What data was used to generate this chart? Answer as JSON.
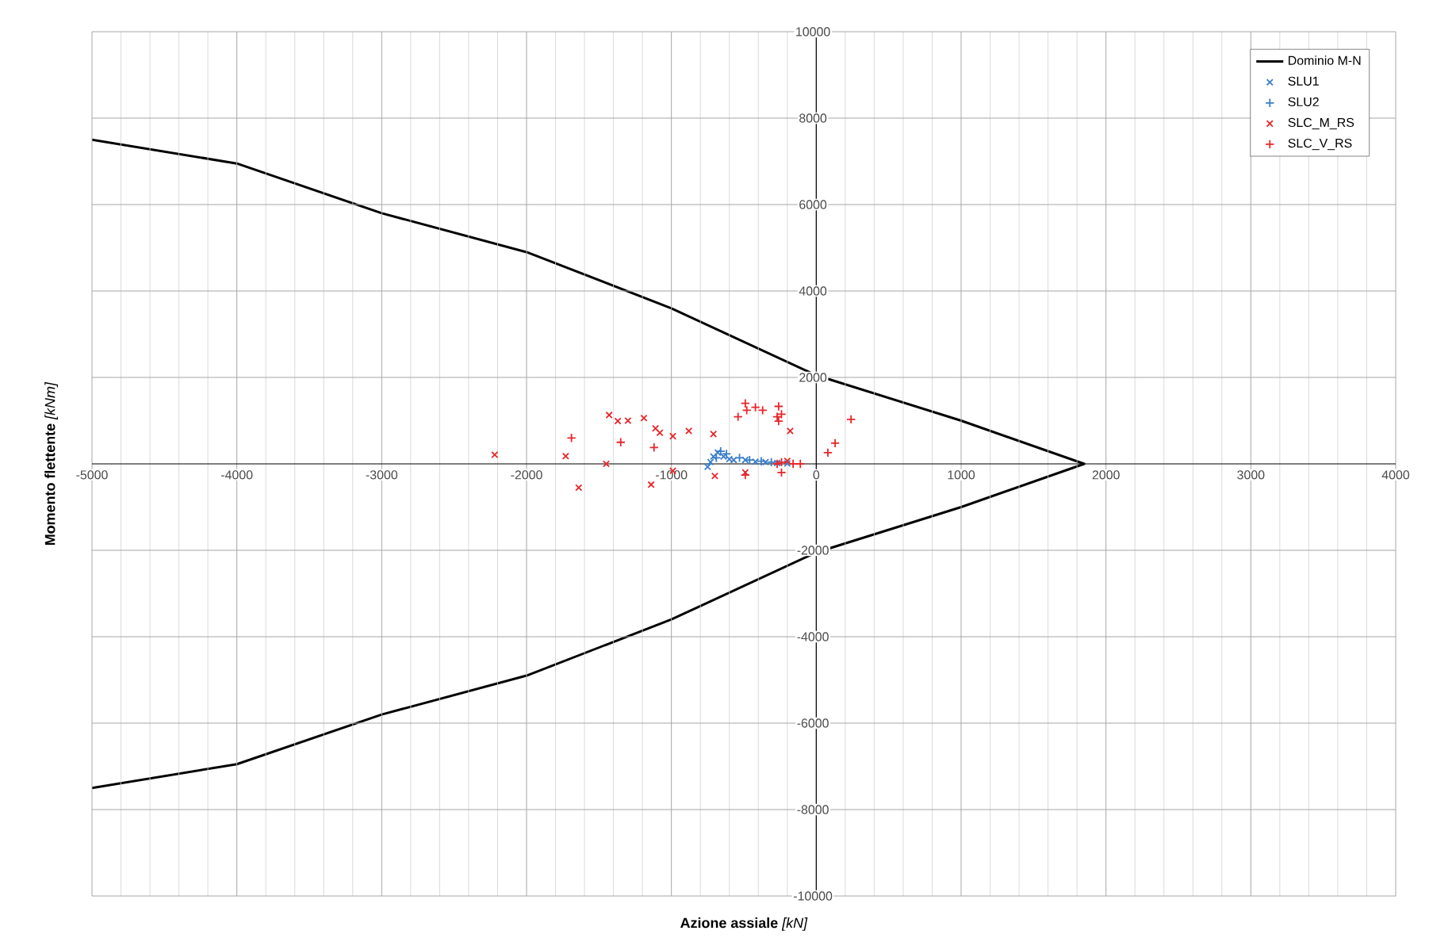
{
  "chart_data": {
    "type": "scatter",
    "xlabel": "**Azione assiale** *[kN]*",
    "ylabel": "**Momento flettente** *[kNm]*",
    "xlim": [
      -5000,
      4000
    ],
    "ylim": [
      -10000,
      10000
    ],
    "xticks": [
      -5000,
      -4000,
      -3000,
      -2000,
      -1000,
      0,
      1000,
      2000,
      3000,
      4000
    ],
    "yticks": [
      -10000,
      -8000,
      -6000,
      -4000,
      -2000,
      2000,
      4000,
      6000,
      8000,
      10000
    ],
    "grid": true,
    "legend": "top right",
    "series": [
      {
        "name": "Dominio M-N",
        "type": "line",
        "color": "#000000",
        "marker": "none",
        "x": [
          -5000,
          -4000,
          -3000,
          -2000,
          -1000,
          0,
          1000,
          1850,
          1000,
          0,
          -1000,
          -2000,
          -3000,
          -4000,
          -5000
        ],
        "values": [
          7500,
          6950,
          5800,
          4900,
          3600,
          2050,
          1000,
          0,
          -1000,
          -2050,
          -3600,
          -4900,
          -5800,
          -6950,
          -7500
        ]
      },
      {
        "name": "SLU1",
        "color": "#3a7dc9",
        "marker": "cross",
        "x": [
          -750,
          -710,
          -680,
          -640,
          -600,
          -570,
          -490,
          -420,
          -350,
          -270,
          -200,
          -730
        ],
        "values": [
          -70,
          170,
          260,
          170,
          110,
          90,
          90,
          50,
          40,
          20,
          10,
          40
        ]
      },
      {
        "name": "SLU2",
        "color": "#3a7dc9",
        "marker": "plus",
        "x": [
          -690,
          -660,
          -620,
          -530,
          -460,
          -380,
          -310
        ],
        "values": [
          140,
          290,
          230,
          140,
          90,
          60,
          40
        ]
      },
      {
        "name": "SLC_M_RS",
        "color": "#e8262a",
        "marker": "cross",
        "x": [
          -2220,
          -1730,
          -1640,
          -1450,
          -1430,
          -1370,
          -1300,
          -1190,
          -1140,
          -1110,
          -1080,
          -990,
          -990,
          -880,
          -710,
          -700,
          -490,
          -180,
          -200
        ],
        "values": [
          210,
          180,
          -550,
          0,
          1130,
          990,
          1000,
          1060,
          -480,
          820,
          720,
          640,
          -160,
          760,
          690,
          -280,
          -200,
          760,
          70
        ]
      },
      {
        "name": "SLC_V_RS",
        "color": "#e8262a",
        "marker": "plus",
        "x": [
          -1690,
          -1350,
          -1120,
          -490,
          -480,
          -420,
          -370,
          -540,
          -260,
          -270,
          -260,
          -240,
          -490,
          -240,
          80,
          130,
          240,
          -270,
          -240,
          -160,
          -110
        ],
        "values": [
          600,
          500,
          380,
          1400,
          1240,
          1310,
          1240,
          1090,
          1330,
          1090,
          990,
          1150,
          -260,
          -200,
          260,
          480,
          1030,
          0,
          40,
          0,
          0
        ]
      }
    ]
  }
}
